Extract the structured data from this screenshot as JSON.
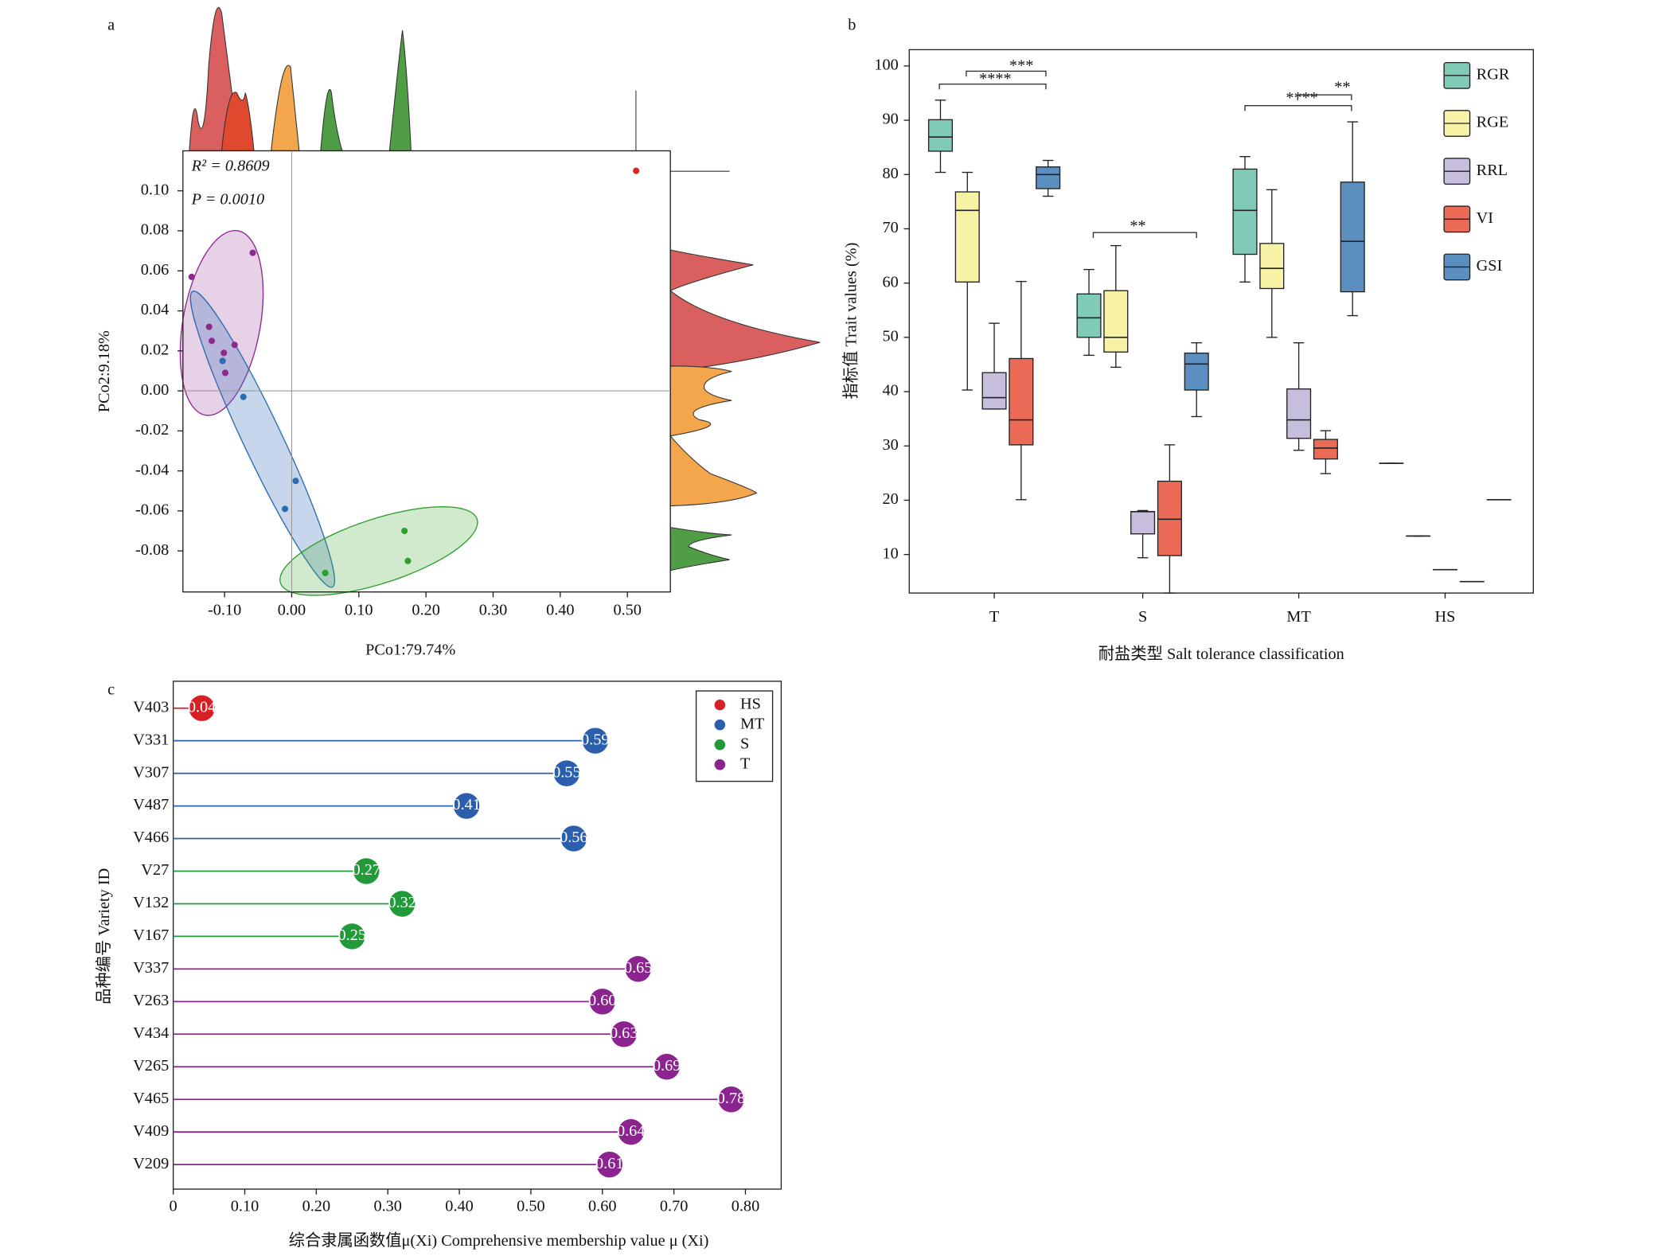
{
  "chart_data": [
    {
      "type": "scatter",
      "panel": "a",
      "xlabel": "PCo1:79.74%",
      "ylabel": "PCo2:9.18%",
      "annotations": [
        "R² = 0.8609",
        "P = 0.0010"
      ],
      "xlim": [
        -0.162,
        0.564
      ],
      "ylim": [
        -0.1005,
        0.12
      ],
      "xticks": [
        {
          "value": -0.1,
          "label": "-0.10"
        },
        {
          "value": 0,
          "label": "0.00"
        },
        {
          "value": 0.1,
          "label": "0.10"
        },
        {
          "value": 0.2,
          "label": "0.20"
        },
        {
          "value": 0.3,
          "label": "0.30"
        },
        {
          "value": 0.4,
          "label": "0.40"
        },
        {
          "value": 0.5,
          "label": "0.50"
        }
      ],
      "yticks": [
        {
          "value": -0.08,
          "label": "-0.08"
        },
        {
          "value": -0.06,
          "label": "-0.06"
        },
        {
          "value": -0.04,
          "label": "-0.04"
        },
        {
          "value": -0.02,
          "label": "-0.02"
        },
        {
          "value": 0,
          "label": "0.00"
        },
        {
          "value": 0.02,
          "label": "0.02"
        },
        {
          "value": 0.04,
          "label": "0.04"
        },
        {
          "value": 0.06,
          "label": "0.06"
        },
        {
          "value": 0.08,
          "label": "0.08"
        },
        {
          "value": 0.1,
          "label": "0.10"
        }
      ],
      "series": [
        {
          "color": "#8e2a8e",
          "x": [
            -0.149,
            -0.058,
            -0.123,
            -0.119,
            -0.101,
            -0.085,
            -0.099
          ],
          "y": [
            0.057,
            0.069,
            0.032,
            0.025,
            0.019,
            0.023,
            0.009
          ]
        },
        {
          "color": "#2b6cb0",
          "x": [
            -0.103,
            -0.072,
            0.006,
            -0.01
          ],
          "y": [
            0.015,
            -0.003,
            -0.045,
            -0.059
          ]
        },
        {
          "color": "#2ca02c",
          "x": [
            0.05,
            0.168,
            0.173
          ],
          "y": [
            -0.091,
            -0.07,
            -0.085
          ]
        },
        {
          "color": "#d62728",
          "x": [
            0.513
          ],
          "y": [
            0.11
          ]
        }
      ]
    },
    {
      "type": "box",
      "panel": "b",
      "xlabel": "耐盐类型 Salt tolerance classification",
      "ylabel": "指标值 Trait values (%)",
      "categories": [
        "T",
        "S",
        "MT",
        "HS"
      ],
      "ylim": [
        2.9,
        103
      ],
      "yticks": [
        10,
        20,
        30,
        40,
        50,
        60,
        70,
        80,
        90,
        100
      ],
      "annotations": [
        "****",
        "***",
        "**",
        "****",
        "**"
      ],
      "series": [
        {
          "name": "RGR",
          "color": "#7fcbb8",
          "whislo": [
            80.4,
            46.7,
            60.2,
            26.8
          ],
          "q1": [
            84.3,
            50.0,
            65.3,
            26.8
          ],
          "median": [
            86.9,
            53.6,
            73.4,
            26.8
          ],
          "q3": [
            90.1,
            58.0,
            81.0,
            26.8
          ],
          "whishi": [
            93.7,
            62.5,
            83.3,
            26.8
          ]
        },
        {
          "name": "RGE",
          "color": "#f7f2a6",
          "whislo": [
            40.3,
            44.5,
            50.0,
            13.4
          ],
          "q1": [
            60.2,
            47.3,
            59.0,
            13.4
          ],
          "median": [
            73.4,
            50.0,
            62.7,
            13.4
          ],
          "q3": [
            76.8,
            58.6,
            67.3,
            13.4
          ],
          "whishi": [
            80.4,
            66.9,
            77.2,
            13.4
          ]
        },
        {
          "name": "RRL",
          "color": "#c6bedc",
          "whislo": [
            36.8,
            9.4,
            29.2,
            7.2
          ],
          "q1": [
            36.8,
            13.8,
            31.4,
            7.2
          ],
          "median": [
            38.9,
            17.9,
            34.8,
            7.2
          ],
          "q3": [
            43.5,
            17.9,
            40.5,
            7.2
          ],
          "whishi": [
            52.6,
            18.1,
            49.0,
            7.2
          ]
        },
        {
          "name": "VI",
          "color": "#ec6b56",
          "whislo": [
            20.1,
            2.9,
            24.9,
            5.0
          ],
          "q1": [
            30.2,
            9.8,
            27.6,
            5.0
          ],
          "median": [
            34.8,
            16.5,
            29.6,
            5.0
          ],
          "q3": [
            46.1,
            23.5,
            31.2,
            5.0
          ],
          "whishi": [
            60.3,
            30.2,
            32.8,
            5.0
          ]
        },
        {
          "name": "GSI",
          "color": "#5b8fc0",
          "whislo": [
            76.0,
            35.4,
            54.0,
            20.1
          ],
          "q1": [
            77.4,
            40.3,
            58.4,
            20.1
          ],
          "median": [
            80.0,
            45.1,
            67.7,
            20.1
          ],
          "q3": [
            81.4,
            47.1,
            78.6,
            20.1
          ],
          "whishi": [
            82.6,
            49.0,
            89.7,
            20.1
          ]
        }
      ]
    },
    {
      "type": "lollipop",
      "panel": "c",
      "xlabel": "综合隶属函数值μ(Xi)  Comprehensive membership value μ (Xi)",
      "ylabel": "品种编号 Variety ID",
      "categories": [
        "V403",
        "V331",
        "V307",
        "V487",
        "V466",
        "V27",
        "V132",
        "V167",
        "V337",
        "V263",
        "V434",
        "V265",
        "V465",
        "V409",
        "V209"
      ],
      "xlim": [
        0,
        0.85
      ],
      "xticks": [
        0,
        {
          "value": 0.1,
          "label": "0.10"
        },
        {
          "value": 0.2,
          "label": "0.20"
        },
        {
          "value": 0.3,
          "label": "0.30"
        },
        {
          "value": 0.4,
          "label": "0.40"
        },
        {
          "value": 0.5,
          "label": "0.50"
        },
        {
          "value": 0.6,
          "label": "0.60"
        },
        {
          "value": 0.7,
          "label": "0.70"
        },
        {
          "value": 0.8,
          "label": "0.80"
        }
      ],
      "series": [
        {
          "name": "HS",
          "color": "#d62024",
          "values": [
            0.04,
            null,
            null,
            null,
            null,
            null,
            null,
            null,
            null,
            null,
            null,
            null,
            null,
            null,
            null
          ],
          "value_labels": [
            "0.04",
            null,
            null,
            null,
            null,
            null,
            null,
            null,
            null,
            null,
            null,
            null,
            null,
            null,
            null
          ]
        },
        {
          "name": "MT",
          "color": "#2b5fae",
          "values": [
            null,
            0.59,
            0.55,
            0.41,
            0.56,
            null,
            null,
            null,
            null,
            null,
            null,
            null,
            null,
            null,
            null
          ],
          "value_labels": [
            null,
            "0.59",
            "0.55",
            "0.41",
            "0.56",
            null,
            null,
            null,
            null,
            null,
            null,
            null,
            null,
            null,
            null
          ]
        },
        {
          "name": "S",
          "color": "#229a3a",
          "values": [
            null,
            null,
            null,
            null,
            null,
            0.27,
            0.32,
            0.25,
            null,
            null,
            null,
            null,
            null,
            null,
            null
          ],
          "value_labels": [
            null,
            null,
            null,
            null,
            null,
            "0.27",
            "0.32",
            "0.25",
            null,
            null,
            null,
            null,
            null,
            null,
            null
          ]
        },
        {
          "name": "T",
          "color": "#8b248f",
          "values": [
            null,
            null,
            null,
            null,
            null,
            null,
            null,
            null,
            0.65,
            0.6,
            0.63,
            0.69,
            0.78,
            0.64,
            0.61
          ],
          "value_labels": [
            null,
            null,
            null,
            null,
            null,
            null,
            null,
            null,
            "0.65",
            "0.60",
            "0.63",
            "0.69",
            "0.78",
            "0.64",
            "0.61"
          ]
        }
      ]
    }
  ]
}
